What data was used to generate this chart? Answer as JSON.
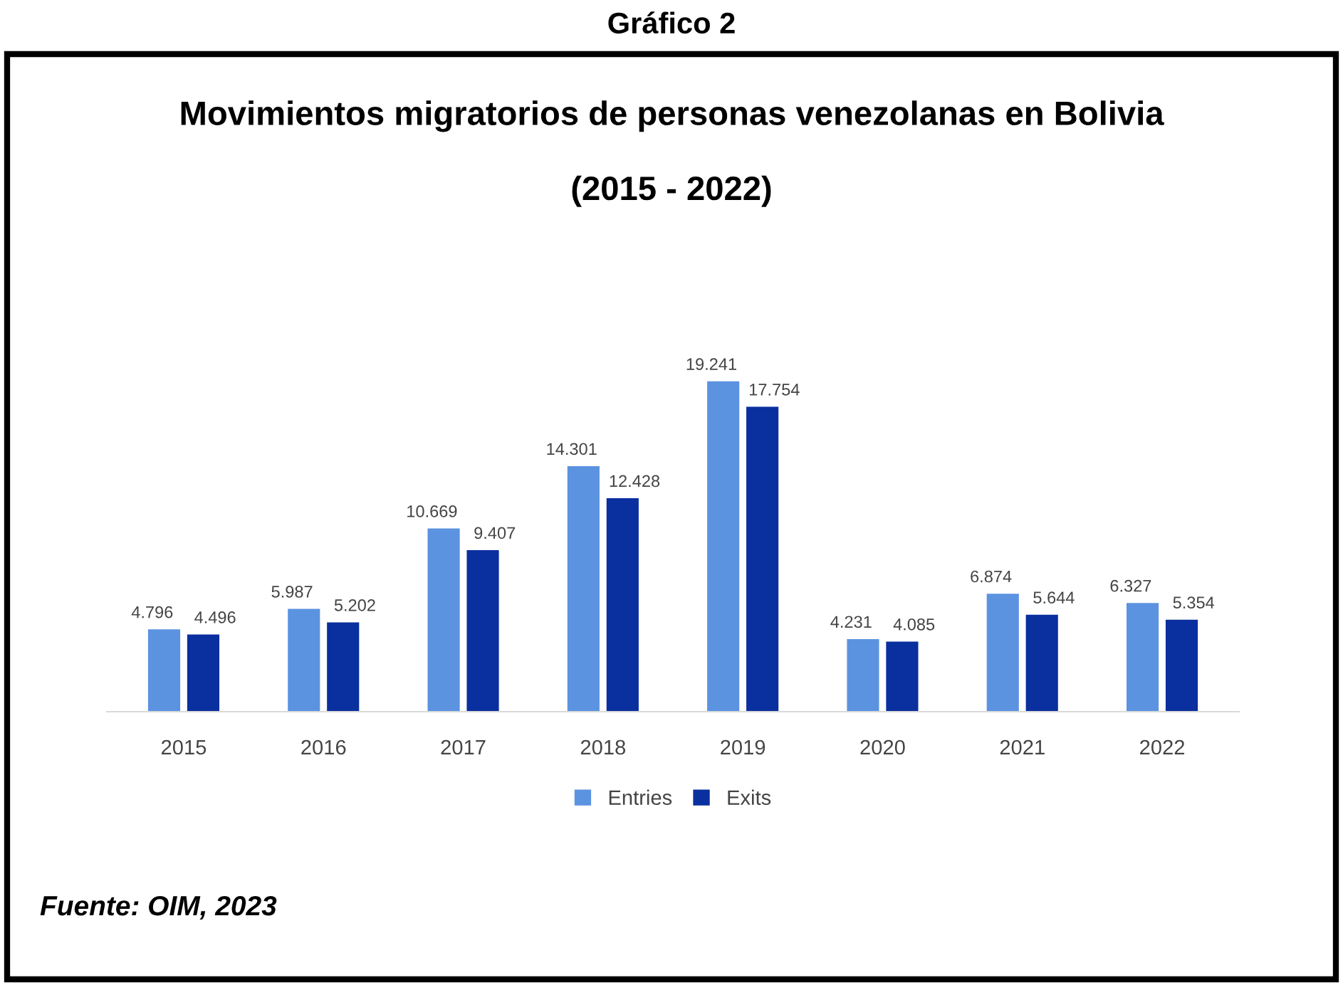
{
  "chart_data": {
    "type": "bar",
    "title": "Gráfico 2",
    "subtitle": "Movimientos migratorios de personas venezolanas en Bolivia\n\n(2015 - 2022)",
    "categories": [
      "2015",
      "2016",
      "2017",
      "2018",
      "2019",
      "2020",
      "2021",
      "2022"
    ],
    "series": [
      {
        "name": "Entries",
        "color": "#5b93e0",
        "values": [
          4796,
          5987,
          10669,
          14301,
          19241,
          4231,
          6874,
          6327
        ],
        "value_labels": [
          "4.796",
          "5.987",
          "10.669",
          "14.301",
          "19.241",
          "4.231",
          "6.874",
          "6.327"
        ]
      },
      {
        "name": "Exits",
        "color": "#0a2f9e",
        "values": [
          4496,
          5202,
          9407,
          12428,
          17754,
          4085,
          5644,
          5354
        ],
        "value_labels": [
          "4.496",
          "5.202",
          "9.407",
          "12.428",
          "17.754",
          "4.085",
          "5.644",
          "5.354"
        ]
      }
    ],
    "annotations": [
      "Fuente: OIM, 2023"
    ],
    "legend": "bottom",
    "grid": false
  }
}
